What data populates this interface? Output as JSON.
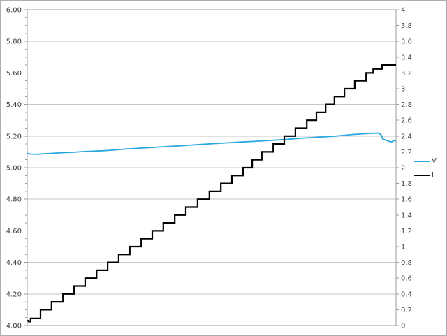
{
  "chart_data": {
    "type": "line",
    "title": "",
    "xlabel": "",
    "ylabel_left": "",
    "ylabel_right": "",
    "grid": "horizontal",
    "legend_position": "right-center",
    "x_axis": {
      "tick_labels_visible": false
    },
    "left_y_axis": {
      "range": [
        4.0,
        6.0
      ],
      "major_step": 0.2,
      "minor_step": 0.05,
      "tick_labels": [
        "6.00",
        "5.80",
        "5.60",
        "5.40",
        "5.20",
        "5.00",
        "4.80",
        "4.60",
        "4.40",
        "4.20",
        "4.00"
      ]
    },
    "right_y_axis": {
      "range": [
        0,
        4
      ],
      "major_step": 0.2,
      "tick_labels": [
        "4",
        "3.8",
        "3.6",
        "3.4",
        "3.2",
        "3",
        "2.8",
        "2.6",
        "2.4",
        "2.2",
        "2",
        "1.8",
        "1.6",
        "1.4",
        "1.2",
        "1",
        "0.8",
        "0.6",
        "0.4",
        "0.2",
        "0"
      ]
    },
    "series": [
      {
        "name": "V",
        "axis": "left",
        "color": "#29a8e0",
        "line_width": 1.8,
        "style": "line",
        "points": [
          [
            0.0,
            5.09
          ],
          [
            0.011,
            5.086
          ],
          [
            0.027,
            5.085
          ],
          [
            0.045,
            5.088
          ],
          [
            0.07,
            5.091
          ],
          [
            0.098,
            5.095
          ],
          [
            0.127,
            5.098
          ],
          [
            0.155,
            5.102
          ],
          [
            0.184,
            5.105
          ],
          [
            0.212,
            5.108
          ],
          [
            0.241,
            5.113
          ],
          [
            0.269,
            5.118
          ],
          [
            0.297,
            5.122
          ],
          [
            0.326,
            5.126
          ],
          [
            0.354,
            5.13
          ],
          [
            0.383,
            5.134
          ],
          [
            0.411,
            5.138
          ],
          [
            0.439,
            5.142
          ],
          [
            0.468,
            5.147
          ],
          [
            0.496,
            5.151
          ],
          [
            0.525,
            5.155
          ],
          [
            0.553,
            5.159
          ],
          [
            0.581,
            5.163
          ],
          [
            0.61,
            5.166
          ],
          [
            0.638,
            5.17
          ],
          [
            0.667,
            5.174
          ],
          [
            0.695,
            5.178
          ],
          [
            0.723,
            5.183
          ],
          [
            0.752,
            5.188
          ],
          [
            0.78,
            5.192
          ],
          [
            0.809,
            5.196
          ],
          [
            0.837,
            5.2
          ],
          [
            0.866,
            5.206
          ],
          [
            0.884,
            5.21
          ],
          [
            0.903,
            5.213
          ],
          [
            0.922,
            5.216
          ],
          [
            0.941,
            5.218
          ],
          [
            0.954,
            5.218
          ],
          [
            0.96,
            5.205
          ],
          [
            0.964,
            5.18
          ],
          [
            0.973,
            5.175
          ],
          [
            0.981,
            5.166
          ],
          [
            0.989,
            5.164
          ],
          [
            0.994,
            5.172
          ],
          [
            1.0,
            5.17
          ]
        ]
      },
      {
        "name": "I",
        "axis": "right",
        "color": "#000000",
        "line_width": 2.2,
        "style": "step",
        "points": [
          [
            0.0,
            0.06
          ],
          [
            0.004,
            0.05
          ],
          [
            0.009,
            0.09
          ],
          [
            0.036,
            0.2
          ],
          [
            0.066,
            0.3
          ],
          [
            0.097,
            0.4
          ],
          [
            0.127,
            0.5
          ],
          [
            0.157,
            0.6
          ],
          [
            0.188,
            0.7
          ],
          [
            0.218,
            0.8
          ],
          [
            0.248,
            0.9
          ],
          [
            0.278,
            1.0
          ],
          [
            0.309,
            1.1
          ],
          [
            0.339,
            1.2
          ],
          [
            0.369,
            1.3
          ],
          [
            0.4,
            1.4
          ],
          [
            0.43,
            1.5
          ],
          [
            0.462,
            1.6
          ],
          [
            0.494,
            1.7
          ],
          [
            0.525,
            1.8
          ],
          [
            0.555,
            1.9
          ],
          [
            0.585,
            2.0
          ],
          [
            0.61,
            2.1
          ],
          [
            0.636,
            2.2
          ],
          [
            0.667,
            2.3
          ],
          [
            0.697,
            2.4
          ],
          [
            0.727,
            2.5
          ],
          [
            0.758,
            2.6
          ],
          [
            0.784,
            2.7
          ],
          [
            0.809,
            2.8
          ],
          [
            0.833,
            2.9
          ],
          [
            0.86,
            3.0
          ],
          [
            0.888,
            3.1
          ],
          [
            0.919,
            3.2
          ],
          [
            0.938,
            3.25
          ],
          [
            0.962,
            3.3
          ]
        ]
      }
    ],
    "legend": {
      "items": [
        {
          "label": "V",
          "color": "#29a8e0"
        },
        {
          "label": "I",
          "color": "#000000"
        }
      ]
    },
    "colors": {
      "plot_border": "#9c9c9c",
      "gridline": "#c6c6c6",
      "tick": "#9c9c9c",
      "label_text": "#3f3f3f",
      "chart_border": "#aeaeae",
      "background": "#ffffff"
    }
  }
}
